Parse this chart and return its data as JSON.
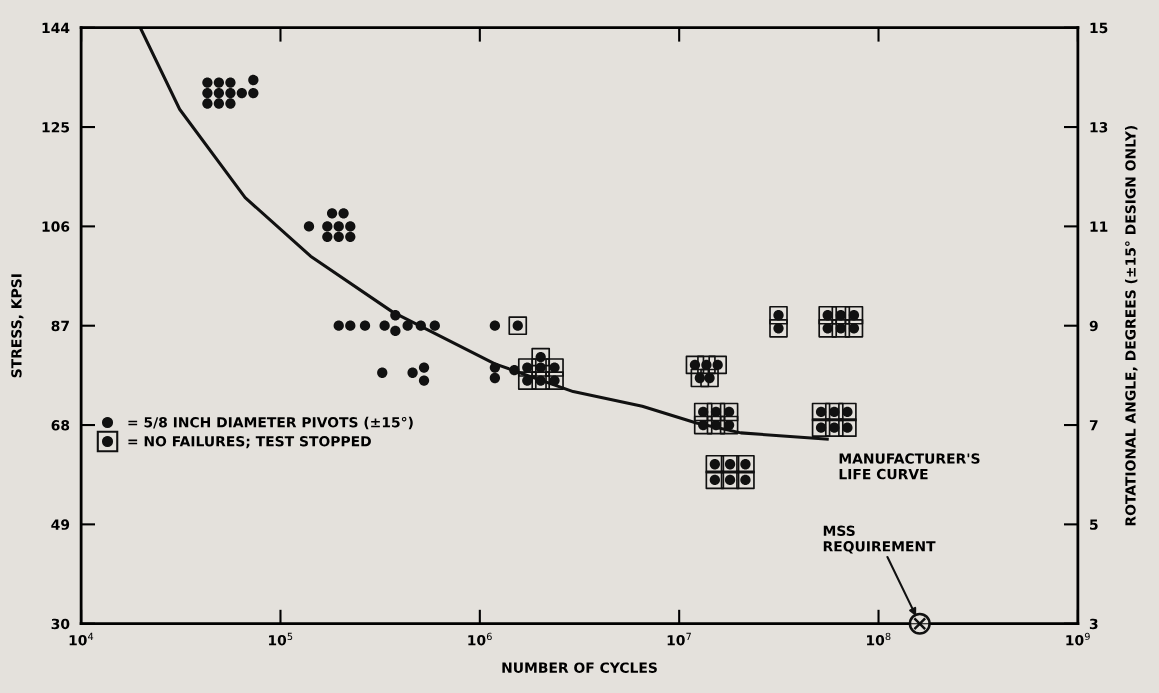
{
  "chart_data": {
    "type": "scatter",
    "xlabel": "NUMBER OF CYCLES",
    "ylabel": "STRESS, KPSI",
    "y2label": "ROTATIONAL ANGLE, DEGREES (±15° DESIGN ONLY)",
    "log": "x",
    "grid": false,
    "legend": "left",
    "xlim": [
      10000,
      1000000000
    ],
    "xticks": [
      {
        "value": 10000,
        "label": "10$^{4}$"
      },
      {
        "value": 100000,
        "label": "10$^{5}$"
      },
      {
        "value": 1000000,
        "label": "10$^{6}$"
      },
      {
        "value": 10000000,
        "label": "10$^{7}$"
      },
      {
        "value": 100000000,
        "label": "10$^{8}$"
      },
      {
        "value": 1000000000,
        "label": "10$^{9}$"
      }
    ],
    "ylim": [
      30,
      144
    ],
    "yticks": [
      30,
      49,
      68,
      87,
      106,
      125,
      144
    ],
    "y2lim": [
      3,
      15
    ],
    "y2ticks": [
      3,
      5,
      7,
      9,
      11,
      13,
      15
    ],
    "series": [
      {
        "name": "= 5/8 INCH DIAMETER PIVOTS (±15°)",
        "marker": "circle",
        "color": "#111111",
        "x": [
          43000,
          49100,
          56100,
          43000,
          49100,
          56100,
          43000,
          49100,
          56100,
          64000,
          73100,
          73100,
          139000,
          181500,
          207300,
          171800,
          196000,
          224000,
          171800,
          196000,
          224000,
          196000,
          224000,
          265500,
          333000,
          377000,
          377000,
          434500,
          505800,
          594500,
          1190000,
          324000,
          460000,
          525000,
          525000,
          1190000,
          1190000,
          1490000
        ],
        "values": [
          133.5,
          133.5,
          133.5,
          131.5,
          131.5,
          131.5,
          129.5,
          129.5,
          129.5,
          131.5,
          131.5,
          134,
          106,
          108.5,
          108.5,
          106,
          106,
          106,
          104,
          104,
          104,
          87,
          87,
          87,
          87,
          89,
          86,
          87,
          87,
          87,
          87,
          78,
          78,
          79,
          76.5,
          79,
          77,
          78.5
        ]
      },
      {
        "name": "= NO FAILURES; TEST STOPPED",
        "marker": "circle",
        "color": "#111111",
        "x": [
          1550000,
          2020000,
          1730000,
          2020000,
          2370000,
          1730000,
          2020000,
          2370000,
          12000000,
          13700000,
          15600000,
          12700000,
          14200000,
          13200000,
          15300000,
          17800000,
          13200000,
          15300000,
          17800000,
          15100000,
          18000000,
          21500000,
          15100000,
          18000000,
          21500000,
          31500000,
          31500000,
          55600000,
          64700000,
          75300000,
          55600000,
          64700000,
          75300000,
          51500000,
          60000000,
          69800000,
          51500000,
          60000000,
          69800000
        ],
        "values": [
          87,
          81,
          79,
          79,
          79,
          76.5,
          76.5,
          76.5,
          79.5,
          79.5,
          79.5,
          77,
          77,
          70.5,
          70.5,
          70.5,
          68,
          68,
          68,
          60.5,
          60.5,
          60.5,
          57.5,
          57.5,
          57.5,
          89,
          86.5,
          89,
          89,
          89,
          86.5,
          86.5,
          86.5,
          70.5,
          70.5,
          70.5,
          67.5,
          67.5,
          67.5
        ]
      },
      {
        "name": "MANUFACTURER'S\nLIFE CURVE",
        "type": "line",
        "line_style": "solid",
        "marker": "none",
        "color": "#111111",
        "x": [
          19800,
          31200,
          66500,
          141600,
          366000,
          1190000,
          2940000,
          6530000,
          12200000,
          20400000,
          55300000
        ],
        "values": [
          144,
          128.4,
          111.5,
          100.3,
          89.6,
          79.7,
          74.4,
          71.6,
          68.4,
          66.5,
          65.3
        ]
      },
      {
        "name": "MSS\nREQUIREMENT",
        "type": "scatter",
        "color": "#111111",
        "x": [
          161000000
        ],
        "values": [
          30
        ]
      }
    ]
  }
}
